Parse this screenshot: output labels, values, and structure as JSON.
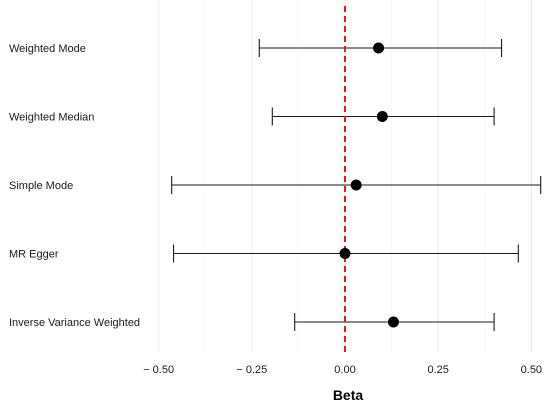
{
  "chart_data": {
    "type": "forest",
    "xlabel": "Beta",
    "xlim": [
      -0.55,
      0.55
    ],
    "x_ticks": [
      -0.5,
      -0.25,
      0,
      0.25,
      0.5
    ],
    "x_tick_labels": [
      "− 0.50",
      "− 0.25",
      "0.00",
      "0.25",
      "0.50"
    ],
    "reference_line": {
      "x": 0,
      "color": "#e31a1c",
      "style": "dashed"
    },
    "grid": true,
    "rows": [
      {
        "label": "Weighted Mode",
        "estimate": 0.09,
        "lower": -0.23,
        "upper": 0.42
      },
      {
        "label": "Weighted Median",
        "estimate": 0.1,
        "lower": -0.195,
        "upper": 0.4
      },
      {
        "label": "Simple Mode",
        "estimate": 0.03,
        "lower": -0.465,
        "upper": 0.525
      },
      {
        "label": "MR Egger",
        "estimate": 0.0,
        "lower": -0.46,
        "upper": 0.465
      },
      {
        "label": "Inverse Variance Weighted",
        "estimate": 0.13,
        "lower": -0.135,
        "upper": 0.4
      }
    ]
  }
}
